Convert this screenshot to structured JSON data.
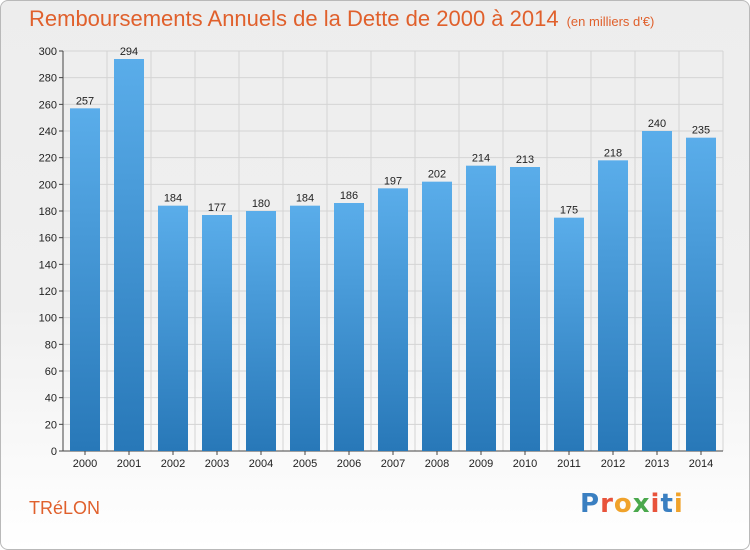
{
  "title": "Remboursements Annuels de la Dette de 2000 à 2014",
  "title_unit": "(en milliers d'€)",
  "commune": "TRéLON",
  "logo": {
    "text": "Proxiti",
    "letters": [
      {
        "ch": "P",
        "color": "#3a7fc1"
      },
      {
        "ch": "r",
        "color": "#e8533b"
      },
      {
        "ch": "o",
        "color": "#f0a22a"
      },
      {
        "ch": "x",
        "color": "#4aa84c"
      },
      {
        "ch": "i",
        "color": "#e8533b"
      },
      {
        "ch": "t",
        "color": "#3a7fc1"
      },
      {
        "ch": "i",
        "color": "#f0a22a"
      }
    ]
  },
  "colors": {
    "bar_light": "#5aadea",
    "bar_dark": "#2878b8",
    "title": "#e0602c",
    "grid": "#d4d4d4"
  },
  "chart_data": {
    "type": "bar",
    "title": "Remboursements Annuels de la Dette de 2000 à 2014",
    "xlabel": "",
    "ylabel": "en milliers d'€",
    "categories": [
      "2000",
      "2001",
      "2002",
      "2003",
      "2004",
      "2005",
      "2006",
      "2007",
      "2008",
      "2009",
      "2010",
      "2011",
      "2012",
      "2013",
      "2014"
    ],
    "values": [
      257,
      294,
      184,
      177,
      180,
      184,
      186,
      197,
      202,
      214,
      213,
      175,
      218,
      240,
      235
    ],
    "ylim": [
      0,
      300
    ],
    "yticks": [
      0,
      20,
      40,
      60,
      80,
      100,
      120,
      140,
      160,
      180,
      200,
      220,
      240,
      260,
      280,
      300
    ],
    "grid": true,
    "legend": "none"
  }
}
